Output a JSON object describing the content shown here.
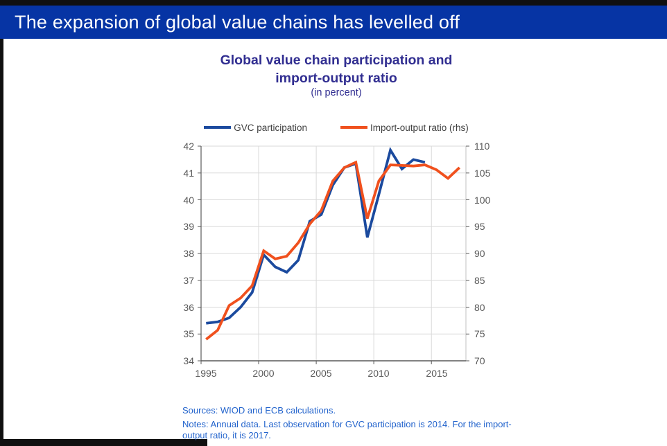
{
  "header": {
    "title": "The expansion of global value chains has levelled off"
  },
  "chart": {
    "title_lines": [
      "Global value chain participation and",
      "import-output ratio"
    ],
    "subtitle": "(in percent)",
    "legend": [
      {
        "label": "GVC participation",
        "color": "#1b4a9e"
      },
      {
        "label": "Import-output ratio (rhs)",
        "color": "#f0501d"
      }
    ]
  },
  "chart_data": {
    "type": "line",
    "title": "Global value chain participation and import-output ratio",
    "subtitle": "(in percent)",
    "grid": true,
    "legend_position": "top",
    "x_axis": {
      "min": 1995,
      "max": 2018,
      "ticks": [
        1995,
        2000,
        2005,
        2010,
        2015
      ]
    },
    "left_axis": {
      "min": 34,
      "max": 42,
      "ticks": [
        34,
        35,
        36,
        37,
        38,
        39,
        40,
        41,
        42
      ]
    },
    "right_axis": {
      "min": 70,
      "max": 110,
      "ticks": [
        70,
        75,
        80,
        85,
        90,
        95,
        100,
        105,
        110
      ]
    },
    "series": [
      {
        "name": "GVC participation",
        "axis": "left",
        "color": "#1b4a9e",
        "years": [
          1995,
          1996,
          1997,
          1998,
          1999,
          2000,
          2001,
          2002,
          2003,
          2004,
          2005,
          2006,
          2007,
          2008,
          2009,
          2010,
          2011,
          2012,
          2013,
          2014
        ],
        "values": [
          35.4,
          35.45,
          35.6,
          36.0,
          36.55,
          37.95,
          37.5,
          37.3,
          37.75,
          39.2,
          39.45,
          40.55,
          41.2,
          41.35,
          38.6,
          40.2,
          41.85,
          41.15,
          41.5,
          41.4
        ]
      },
      {
        "name": "Import-output ratio (rhs)",
        "axis": "right",
        "color": "#f0501d",
        "years": [
          1995,
          1996,
          1997,
          1998,
          1999,
          2000,
          2001,
          2002,
          2003,
          2004,
          2005,
          2006,
          2007,
          2008,
          2009,
          2010,
          2011,
          2012,
          2013,
          2014,
          2015,
          2016,
          2017
        ],
        "values": [
          74,
          75.7,
          80.3,
          81.7,
          84,
          90.5,
          89,
          89.5,
          92,
          95.5,
          98,
          103.5,
          106,
          107,
          96.5,
          103.5,
          106.5,
          106.4,
          106.3,
          106.5,
          105.6,
          104,
          106
        ]
      }
    ]
  },
  "footer": {
    "sources": "Sources: WIOD and ECB calculations.",
    "notes_lines": [
      "Notes: Annual data. Last observation for GVC participation is 2014. For the import-",
      "output ratio, it is 2017."
    ]
  },
  "colors": {
    "header_bg": "#0634a4",
    "header_text": "#ffffff",
    "chart_title": "#312e91",
    "footer_text": "#2263cc",
    "gvc_blue": "#1b4a9e",
    "ior_orange": "#f0501d",
    "axis": "#595959",
    "legend_text": "#3f3f3f",
    "grid": "#d9d9d9",
    "edge_black": "#101010"
  }
}
